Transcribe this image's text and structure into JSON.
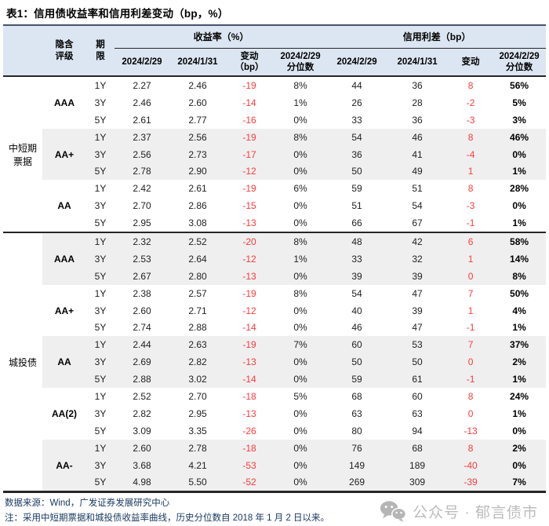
{
  "title": "表1：信用债收益率和信用利差变动（bp，%）",
  "chart_data": {
    "type": "table",
    "title": "信用债收益率和信用利差变动（bp，%）",
    "column_groups": [
      "收益率（%）",
      "信用利差（bp）"
    ],
    "columns": [
      "隐含评级",
      "期限",
      "收益率 2024/2/29",
      "收益率 2024/1/31",
      "收益率变动（bp）",
      "收益率 2024/2/29 分位数",
      "信用利差 2024/2/29",
      "信用利差 2024/1/31",
      "信用利差变动",
      "信用利差 2024/2/29 分位数"
    ]
  },
  "table": {
    "header": {
      "corner": "",
      "rating": "隐含\n评级",
      "tenor": "期\n限",
      "yield_group": "收益率（%）",
      "spread_group": "信用利差（bp）",
      "yield_cols": [
        "2024/2/29",
        "2024/1/31",
        "变动\n（bp）",
        "2024/2/29\n分位数"
      ],
      "spread_cols": [
        "2024/2/29",
        "2024/1/31",
        "变动",
        "2024/2/29\n分位数"
      ]
    },
    "sections": [
      {
        "label": "中短期\n票据",
        "groups": [
          {
            "rating": "AAA",
            "rows": [
              [
                "1Y",
                "2.27",
                "2.46",
                "-19",
                "8%",
                "44",
                "36",
                "8",
                "56%"
              ],
              [
                "3Y",
                "2.46",
                "2.60",
                "-14",
                "1%",
                "26",
                "28",
                "-2",
                "5%"
              ],
              [
                "5Y",
                "2.61",
                "2.77",
                "-16",
                "0%",
                "33",
                "36",
                "-3",
                "3%"
              ]
            ]
          },
          {
            "rating": "AA+",
            "rows": [
              [
                "1Y",
                "2.37",
                "2.56",
                "-19",
                "8%",
                "54",
                "46",
                "8",
                "46%"
              ],
              [
                "3Y",
                "2.56",
                "2.73",
                "-17",
                "0%",
                "36",
                "41",
                "-4",
                "0%"
              ],
              [
                "5Y",
                "2.78",
                "2.90",
                "-12",
                "0%",
                "50",
                "49",
                "1",
                "1%"
              ]
            ]
          },
          {
            "rating": "AA",
            "rows": [
              [
                "1Y",
                "2.42",
                "2.61",
                "-19",
                "6%",
                "59",
                "51",
                "8",
                "28%"
              ],
              [
                "3Y",
                "2.70",
                "2.86",
                "-15",
                "0%",
                "51",
                "54",
                "-3",
                "0%"
              ],
              [
                "5Y",
                "2.95",
                "3.08",
                "-13",
                "0%",
                "66",
                "67",
                "-1",
                "1%"
              ]
            ]
          }
        ]
      },
      {
        "label": "城投债",
        "groups": [
          {
            "rating": "AAA",
            "rows": [
              [
                "1Y",
                "2.32",
                "2.52",
                "-20",
                "8%",
                "48",
                "42",
                "6",
                "58%"
              ],
              [
                "3Y",
                "2.53",
                "2.64",
                "-12",
                "1%",
                "33",
                "32",
                "1",
                "14%"
              ],
              [
                "5Y",
                "2.67",
                "2.80",
                "-13",
                "0%",
                "39",
                "39",
                "0",
                "8%"
              ]
            ]
          },
          {
            "rating": "AA+",
            "rows": [
              [
                "1Y",
                "2.38",
                "2.57",
                "-19",
                "8%",
                "54",
                "47",
                "7",
                "50%"
              ],
              [
                "3Y",
                "2.60",
                "2.71",
                "-12",
                "0%",
                "40",
                "39",
                "1",
                "4%"
              ],
              [
                "5Y",
                "2.74",
                "2.88",
                "-14",
                "0%",
                "46",
                "47",
                "-1",
                "1%"
              ]
            ]
          },
          {
            "rating": "AA",
            "rows": [
              [
                "1Y",
                "2.44",
                "2.63",
                "-19",
                "7%",
                "60",
                "53",
                "7",
                "37%"
              ],
              [
                "3Y",
                "2.69",
                "2.82",
                "-13",
                "0%",
                "50",
                "50",
                "0",
                "2%"
              ],
              [
                "5Y",
                "2.88",
                "3.02",
                "-14",
                "0%",
                "59",
                "61",
                "-1",
                "1%"
              ]
            ]
          },
          {
            "rating": "AA(2)",
            "rows": [
              [
                "1Y",
                "2.52",
                "2.70",
                "-18",
                "5%",
                "68",
                "60",
                "8",
                "24%"
              ],
              [
                "3Y",
                "2.82",
                "2.95",
                "-13",
                "0%",
                "63",
                "63",
                "0",
                "1%"
              ],
              [
                "5Y",
                "3.09",
                "3.35",
                "-26",
                "0%",
                "80",
                "94",
                "-13",
                "0%"
              ]
            ]
          },
          {
            "rating": "AA-",
            "rows": [
              [
                "1Y",
                "2.60",
                "2.78",
                "-18",
                "0%",
                "76",
                "68",
                "8",
                "2%"
              ],
              [
                "3Y",
                "3.68",
                "4.21",
                "-53",
                "0%",
                "149",
                "189",
                "-40",
                "0%"
              ],
              [
                "5Y",
                "4.98",
                "5.50",
                "-52",
                "0%",
                "269",
                "309",
                "-39",
                "7%"
              ]
            ]
          }
        ]
      }
    ]
  },
  "footer": {
    "source": "数据来源：Wind，广发证券发展研究中心",
    "note": "注：采用中短期票据和城投债收益率曲线，历史分位数自 2018 年 1 月 2 日以来。",
    "watermark": "公众号 · 郁言债市"
  },
  "colors": {
    "header_bg": "#dce6f2",
    "stripe_bg": "#efefef",
    "negative_red": "#fb3b3b",
    "footer_navy": "#17375e",
    "border_dark": "#262626",
    "border_navy": "#44546a",
    "watermark_gray": "#bcbcbc"
  }
}
